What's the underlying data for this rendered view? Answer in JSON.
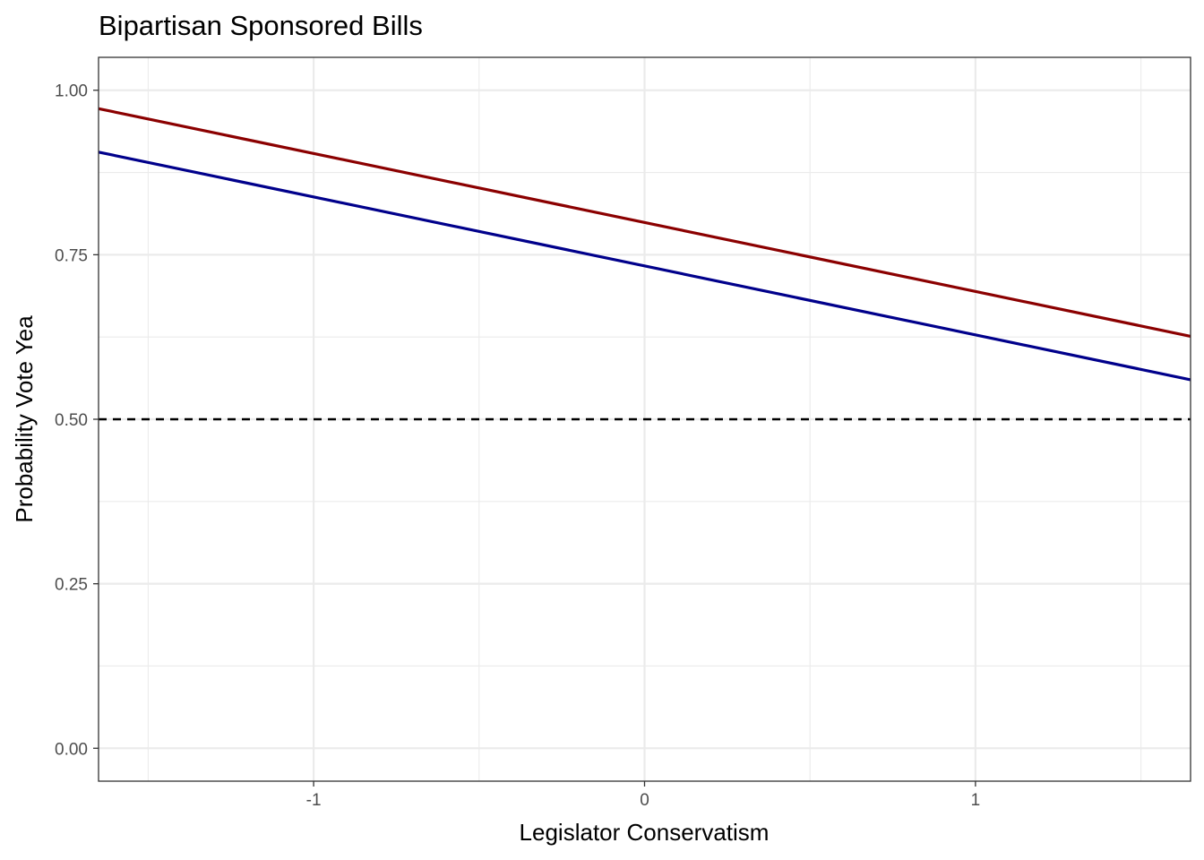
{
  "chart_data": {
    "type": "line",
    "title": "Bipartisan Sponsored Bills",
    "xlabel": "Legislator Conservatism",
    "ylabel": "Probability Vote Yea",
    "xlim": [
      -1.65,
      1.65
    ],
    "ylim": [
      -0.05,
      1.05
    ],
    "x_ticks": [
      -1,
      0,
      1
    ],
    "x_tick_labels": [
      "-1",
      "0",
      "1"
    ],
    "y_ticks": [
      0,
      0.25,
      0.5,
      0.75,
      1.0
    ],
    "y_tick_labels": [
      "0.00",
      "0.25",
      "0.50",
      "0.75",
      "1.00"
    ],
    "grid": true,
    "legend": "none",
    "series": [
      {
        "color": "#8B0000",
        "x": [
          -1.65,
          1.65
        ],
        "values": [
          0.972,
          0.626
        ]
      },
      {
        "color": "#00008B",
        "x": [
          -1.65,
          1.65
        ],
        "values": [
          0.906,
          0.56
        ]
      }
    ],
    "reference_line": {
      "y": 0.5,
      "style": "dashed",
      "color": "#000000"
    }
  }
}
